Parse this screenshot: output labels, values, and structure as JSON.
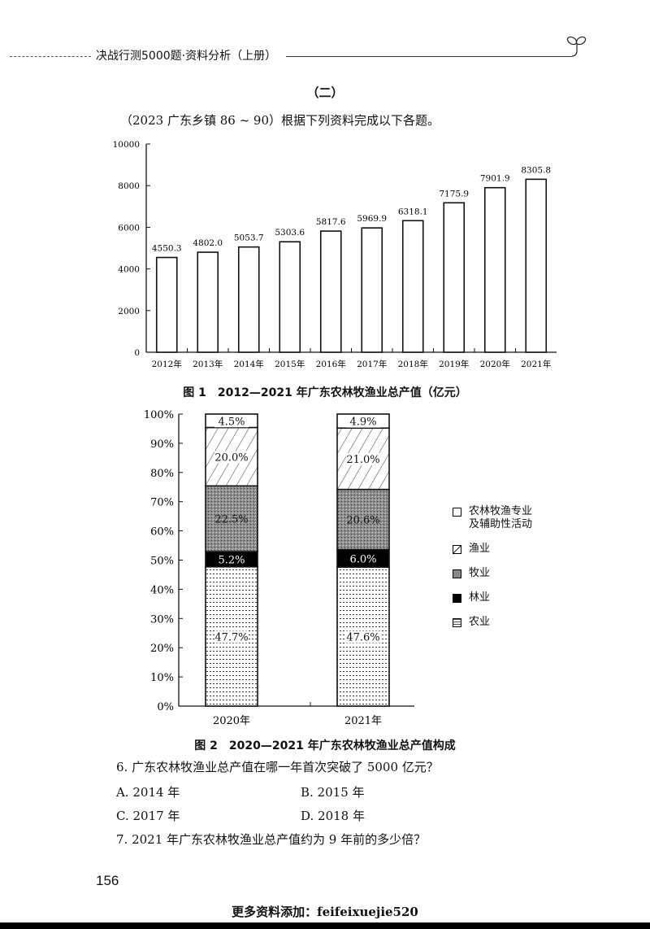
{
  "header": {
    "book_title": "决战行测5000题·资料分析（上册）",
    "decoration": "sprout-icon"
  },
  "section": {
    "title": "（二）",
    "intro": "（2023 广东乡镇 86 ~ 90）根据下列资料完成以下各题。"
  },
  "chart_data": [
    {
      "type": "bar",
      "title": "图 1　2012—2021 年广东农林牧渔业总产值（亿元）",
      "xlabel": "",
      "ylabel": "",
      "categories": [
        "2012年",
        "2013年",
        "2014年",
        "2015年",
        "2016年",
        "2017年",
        "2018年",
        "2019年",
        "2020年",
        "2021年"
      ],
      "values": [
        4550.3,
        4802.0,
        5053.7,
        5303.6,
        5817.6,
        5969.9,
        6318.1,
        7175.9,
        7901.9,
        8305.8
      ],
      "value_labels": [
        "4550.3",
        "4802.0",
        "5053.7",
        "5303.6",
        "5817.6",
        "5969.9",
        "6318.1",
        "7175.9",
        "7901.9",
        "8305.8"
      ],
      "ylim": [
        0,
        10000
      ],
      "yticks": [
        "0",
        "2000",
        "4000",
        "6000",
        "8000",
        "10000"
      ],
      "grid": false,
      "legend": "none"
    },
    {
      "type": "bar",
      "stacked": true,
      "title": "图 2　2020—2021 年广东农林牧渔业总产值构成",
      "categories": [
        "2020年",
        "2021年"
      ],
      "series": [
        {
          "name": "农业",
          "values": [
            47.7,
            47.6
          ],
          "labels": [
            "47.7%",
            "47.6%"
          ],
          "pattern": "dotted"
        },
        {
          "name": "林业",
          "values": [
            5.2,
            6.0
          ],
          "labels": [
            "5.2%",
            "6.0%"
          ],
          "pattern": "solid-black"
        },
        {
          "name": "牧业",
          "values": [
            22.5,
            20.6
          ],
          "labels": [
            "22.5%",
            "20.6%"
          ],
          "pattern": "dense-gray"
        },
        {
          "name": "渔业",
          "values": [
            20.0,
            21.0
          ],
          "labels": [
            "20.0%",
            "21.0%"
          ],
          "pattern": "diagonal-hatch"
        },
        {
          "name": "农林牧渔专业及辅助性活动",
          "values": [
            4.5,
            4.9
          ],
          "labels": [
            "4.5%",
            "4.9%"
          ],
          "pattern": "white"
        }
      ],
      "ylim": [
        0,
        100
      ],
      "yticks": [
        "0%",
        "10%",
        "20%",
        "30%",
        "40%",
        "50%",
        "60%",
        "70%",
        "80%",
        "90%",
        "100%"
      ],
      "legend_position": "right",
      "legend": [
        "农林牧渔专业及辅助性活动",
        "渔业",
        "牧业",
        "林业",
        "农业"
      ]
    }
  ],
  "legend": {
    "items": [
      {
        "label": "农林牧渔专业\n及辅助性活动",
        "line1": "农林牧渔专业",
        "line2": "及辅助性活动"
      },
      {
        "label": "渔业"
      },
      {
        "label": "牧业"
      },
      {
        "label": "林业"
      },
      {
        "label": "农业"
      }
    ]
  },
  "questions": [
    {
      "text": "6. 广东农林牧渔业总产值在哪一年首次突破了 5000 亿元？",
      "options": [
        "A. 2014 年",
        "B. 2015 年",
        "C. 2017 年",
        "D. 2018 年"
      ]
    },
    {
      "text": "7. 2021 年广东农林牧渔业总产值约为 9 年前的多少倍？"
    }
  ],
  "footer": {
    "page_number": "156",
    "note": "更多资料添加：feifeixuejie520"
  }
}
